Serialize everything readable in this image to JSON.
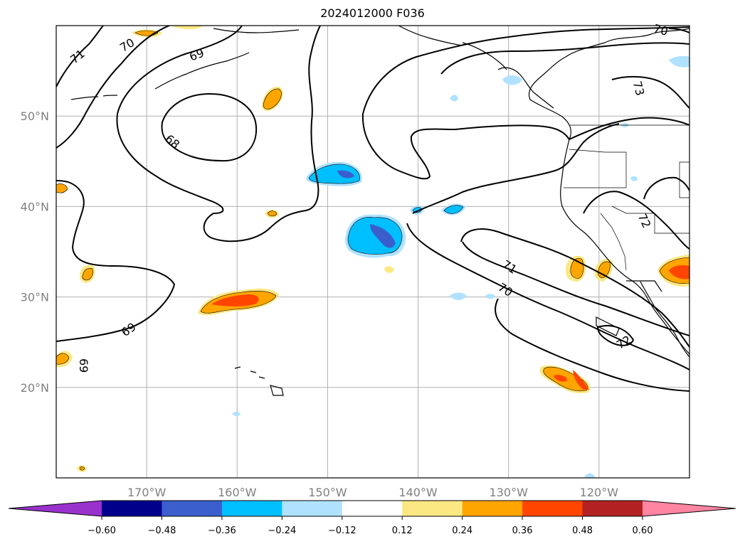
{
  "title": "2024012000 F036",
  "map": {
    "lon_range": [
      -180,
      -110
    ],
    "lat_range": [
      10,
      60
    ],
    "gridline_color": "#b0b0b0",
    "label_color": "#808080",
    "lat_labels": [
      {
        "lat": 50,
        "text": "50°N"
      },
      {
        "lat": 40,
        "text": "40°N"
      },
      {
        "lat": 30,
        "text": "30°N"
      },
      {
        "lat": 20,
        "text": "20°N"
      }
    ],
    "lon_labels": [
      {
        "lon": -170,
        "text": "170°W"
      },
      {
        "lon": -160,
        "text": "160°W"
      },
      {
        "lon": -150,
        "text": "150°W"
      },
      {
        "lon": -140,
        "text": "140°W"
      },
      {
        "lon": -130,
        "text": "130°W"
      },
      {
        "lon": -120,
        "text": "120°W"
      }
    ],
    "contour_labels": [
      "71",
      "70",
      "69",
      "68",
      "69",
      "69",
      "70",
      "73",
      "72",
      "71",
      "70",
      "72"
    ]
  },
  "colorbar": {
    "colors": [
      "#9932cc",
      "#00008b",
      "#3a5fcd",
      "#00bfff",
      "#b0e2ff",
      "#ffffff",
      "#fce883",
      "#ffa500",
      "#ff4500",
      "#b22222",
      "#ff85a2"
    ],
    "ticks": [
      "−0.60",
      "−0.48",
      "−0.36",
      "−0.24",
      "−0.12",
      "0.12",
      "0.24",
      "0.36",
      "0.48",
      "0.60"
    ]
  }
}
